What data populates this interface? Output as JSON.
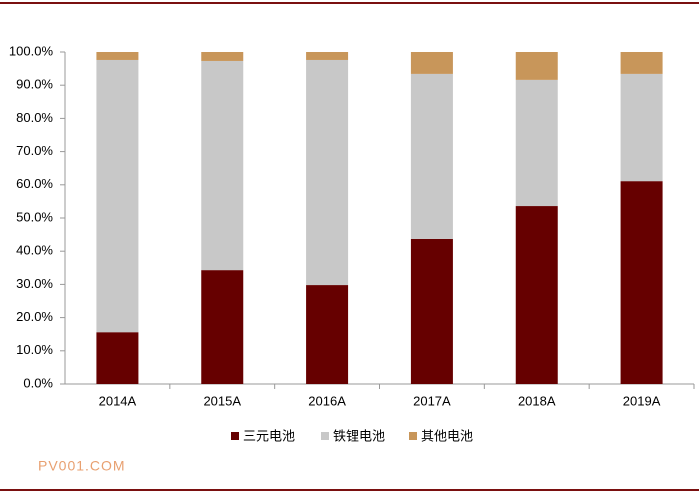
{
  "chart_data": {
    "type": "stacked_bar",
    "categories": [
      "2014A",
      "2015A",
      "2016A",
      "2017A",
      "2018A",
      "2019A"
    ],
    "series": [
      {
        "name": "三元电池",
        "color": "#660000",
        "values": [
          15.6,
          34.3,
          29.8,
          43.7,
          53.6,
          61.1
        ]
      },
      {
        "name": "铁锂电池",
        "color": "#c8c8c8",
        "values": [
          82.0,
          63.0,
          67.8,
          49.7,
          38.0,
          32.3
        ]
      },
      {
        "name": "其他电池",
        "color": "#c8965a",
        "values": [
          2.4,
          2.7,
          2.4,
          6.6,
          8.4,
          6.6
        ]
      }
    ],
    "ylim": [
      0,
      100
    ],
    "yticks": [
      {
        "value": 0,
        "label": "0.0%"
      },
      {
        "value": 10,
        "label": "10.0%"
      },
      {
        "value": 20,
        "label": "20.0%"
      },
      {
        "value": 30,
        "label": "30.0%"
      },
      {
        "value": 40,
        "label": "40.0%"
      },
      {
        "value": 50,
        "label": "50.0%"
      },
      {
        "value": 60,
        "label": "60.0%"
      },
      {
        "value": 70,
        "label": "70.0%"
      },
      {
        "value": 80,
        "label": "80.0%"
      },
      {
        "value": 90,
        "label": "90.0%"
      },
      {
        "value": 100,
        "label": "100.0%"
      }
    ],
    "legend": "bottom",
    "watermark": "PV001.COM"
  }
}
